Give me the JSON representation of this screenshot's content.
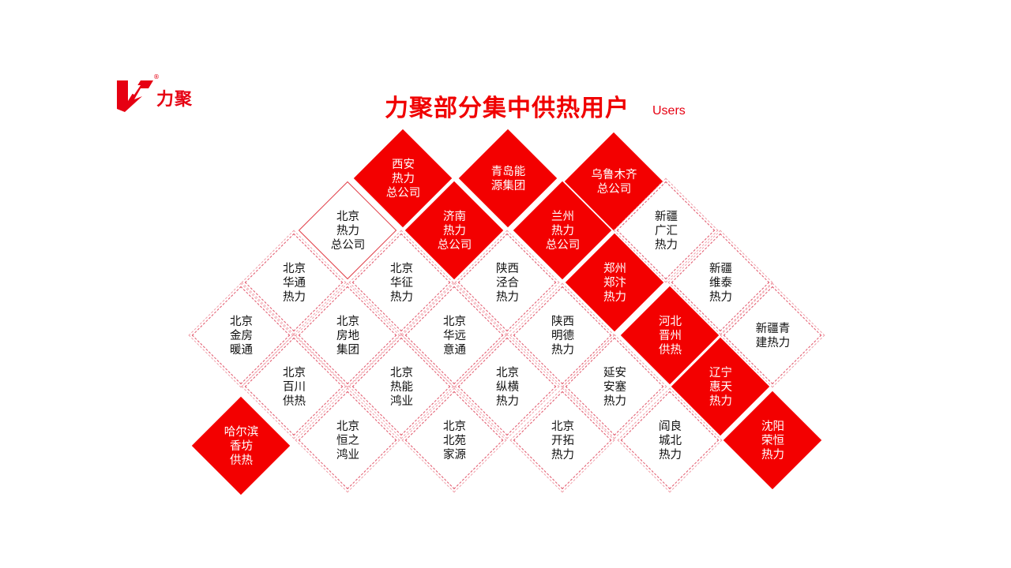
{
  "logo": {
    "brand_text": "力聚",
    "registered_mark": "®",
    "color": "#e60012"
  },
  "header": {
    "title": "力聚部分集中供热用户",
    "subtitle": "Users"
  },
  "colors": {
    "accent_red": "#f30000",
    "dashed_border": "#e2566a"
  },
  "users": [
    {
      "lines": [
        "西安",
        "热力",
        "总公司"
      ],
      "style": "red"
    },
    {
      "lines": [
        "青岛能",
        "源集团"
      ],
      "style": "red"
    },
    {
      "lines": [
        "乌鲁木齐",
        "总公司"
      ],
      "style": "red"
    },
    {
      "lines": [
        "北京",
        "热力",
        "总公司"
      ],
      "style": "solid"
    },
    {
      "lines": [
        "济南",
        "热力",
        "总公司"
      ],
      "style": "red"
    },
    {
      "lines": [
        "兰州",
        "热力",
        "总公司"
      ],
      "style": "red"
    },
    {
      "lines": [
        "新疆",
        "广汇",
        "热力"
      ],
      "style": "dashed"
    },
    {
      "lines": [
        "北京",
        "华通",
        "热力"
      ],
      "style": "dashed"
    },
    {
      "lines": [
        "北京",
        "华征",
        "热力"
      ],
      "style": "dashed"
    },
    {
      "lines": [
        "陕西",
        "泾合",
        "热力"
      ],
      "style": "dashed"
    },
    {
      "lines": [
        "郑州",
        "郑汴",
        "热力"
      ],
      "style": "red"
    },
    {
      "lines": [
        "新疆",
        "维泰",
        "热力"
      ],
      "style": "dashed"
    },
    {
      "lines": [
        "北京",
        "金房",
        "暖通"
      ],
      "style": "dashed"
    },
    {
      "lines": [
        "北京",
        "房地",
        "集团"
      ],
      "style": "dashed"
    },
    {
      "lines": [
        "北京",
        "华远",
        "意通"
      ],
      "style": "dashed"
    },
    {
      "lines": [
        "陕西",
        "明德",
        "热力"
      ],
      "style": "dashed"
    },
    {
      "lines": [
        "河北",
        "晋州",
        "供热"
      ],
      "style": "red"
    },
    {
      "lines": [
        "新疆青",
        "建热力"
      ],
      "style": "dashed"
    },
    {
      "lines": [
        "北京",
        "百川",
        "供热"
      ],
      "style": "dashed"
    },
    {
      "lines": [
        "北京",
        "热能",
        "鸿业"
      ],
      "style": "dashed"
    },
    {
      "lines": [
        "北京",
        "纵横",
        "热力"
      ],
      "style": "dashed"
    },
    {
      "lines": [
        "延安",
        "安塞",
        "热力"
      ],
      "style": "dashed"
    },
    {
      "lines": [
        "辽宁",
        "惠天",
        "热力"
      ],
      "style": "red"
    },
    {
      "lines": [
        "哈尔滨",
        "香坊",
        "供热"
      ],
      "style": "red"
    },
    {
      "lines": [
        "北京",
        "恒之",
        "鸿业"
      ],
      "style": "dashed"
    },
    {
      "lines": [
        "北京",
        "北苑",
        "家源"
      ],
      "style": "dashed"
    },
    {
      "lines": [
        "北京",
        "开拓",
        "热力"
      ],
      "style": "dashed"
    },
    {
      "lines": [
        "阎良",
        "城北",
        "热力"
      ],
      "style": "dashed"
    },
    {
      "lines": [
        "沈阳",
        "荣恒",
        "热力"
      ],
      "style": "red"
    }
  ]
}
